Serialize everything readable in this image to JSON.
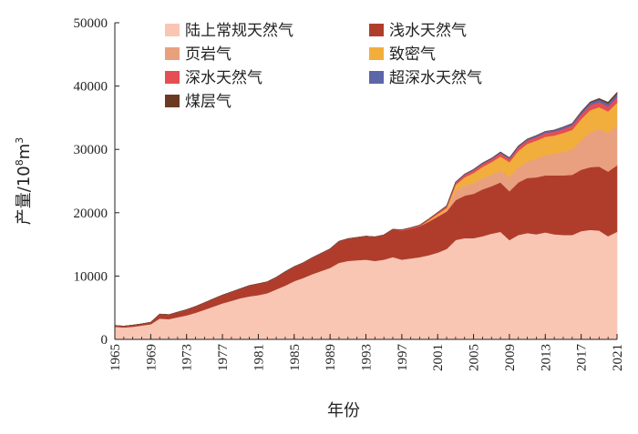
{
  "chart_data": {
    "type": "area",
    "stacked": true,
    "xlabel": "年份",
    "ylabel": "产量/10⁸m³",
    "ylabel_main": "产量/10",
    "ylabel_exp": "8",
    "ylabel_unit": "m",
    "ylabel_unit_exp": "3",
    "ylim": [
      0,
      50000
    ],
    "yticks": [
      0,
      10000,
      20000,
      30000,
      40000,
      50000
    ],
    "xlim": [
      1965,
      2021
    ],
    "xticks": [
      1965,
      1969,
      1973,
      1977,
      1981,
      1985,
      1989,
      1993,
      1997,
      2001,
      2005,
      2009,
      2013,
      2017,
      2021
    ],
    "legend_position": "top",
    "years": [
      1965,
      1966,
      1967,
      1968,
      1969,
      1970,
      1971,
      1972,
      1973,
      1974,
      1975,
      1976,
      1977,
      1978,
      1979,
      1980,
      1981,
      1982,
      1983,
      1984,
      1985,
      1986,
      1987,
      1988,
      1989,
      1990,
      1991,
      1992,
      1993,
      1994,
      1995,
      1996,
      1997,
      1998,
      1999,
      2000,
      2001,
      2002,
      2003,
      2004,
      2005,
      2006,
      2007,
      2008,
      2009,
      2010,
      2011,
      2012,
      2013,
      2014,
      2015,
      2016,
      2017,
      2018,
      2019,
      2020,
      2021
    ],
    "series": [
      {
        "name": "陆上常规天然气",
        "color": "#f9c6b4",
        "values": [
          2000,
          1900,
          2000,
          2200,
          2400,
          3300,
          3200,
          3500,
          3800,
          4200,
          4700,
          5200,
          5700,
          6100,
          6500,
          6800,
          7000,
          7300,
          7900,
          8500,
          9200,
          9700,
          10300,
          10800,
          11300,
          12100,
          12400,
          12500,
          12600,
          12400,
          12600,
          13000,
          12600,
          12800,
          13000,
          13300,
          13700,
          14300,
          15700,
          16000,
          16000,
          16300,
          16700,
          17000,
          15700,
          16500,
          16800,
          16600,
          16900,
          16600,
          16500,
          16500,
          17100,
          17300,
          17200,
          16300,
          17000
        ]
      },
      {
        "name": "浅水天然气",
        "color": "#b03d2c",
        "values": [
          200,
          200,
          250,
          250,
          300,
          700,
          700,
          800,
          900,
          1000,
          1100,
          1200,
          1300,
          1400,
          1500,
          1700,
          1800,
          1800,
          1900,
          2200,
          2300,
          2400,
          2600,
          2800,
          3000,
          3400,
          3500,
          3600,
          3700,
          3800,
          3900,
          4400,
          4600,
          4700,
          4900,
          5300,
          5700,
          5900,
          6300,
          6700,
          7000,
          7400,
          7500,
          7800,
          7700,
          8300,
          8700,
          9000,
          9000,
          9300,
          9400,
          9500,
          9700,
          9900,
          10100,
          10200,
          10500
        ]
      },
      {
        "name": "页岩气",
        "color": "#e9a07e",
        "values": [
          0,
          0,
          0,
          0,
          0,
          0,
          0,
          0,
          0,
          0,
          0,
          0,
          0,
          0,
          0,
          0,
          0,
          0,
          0,
          0,
          0,
          0,
          0,
          0,
          0,
          0,
          0,
          0,
          0,
          0,
          0,
          0,
          0,
          0,
          0,
          0,
          100,
          150,
          1500,
          1600,
          1700,
          1750,
          1800,
          1900,
          2200,
          2400,
          2600,
          2900,
          3200,
          3400,
          3700,
          4000,
          4700,
          5500,
          6000,
          6100,
          6300
        ]
      },
      {
        "name": "致密气",
        "color": "#f2ae3c",
        "values": [
          0,
          0,
          0,
          0,
          0,
          0,
          0,
          0,
          0,
          0,
          0,
          0,
          0,
          0,
          0,
          0,
          0,
          0,
          0,
          0,
          0,
          0,
          0,
          0,
          0,
          0,
          0,
          0,
          0,
          0,
          0,
          0,
          0,
          0,
          0,
          200,
          300,
          400,
          900,
          1300,
          1600,
          1800,
          2000,
          2200,
          2400,
          2600,
          2800,
          2900,
          2900,
          2900,
          3000,
          3100,
          3300,
          3500,
          3400,
          3400,
          3600
        ]
      },
      {
        "name": "深水天然气",
        "color": "#e54e52",
        "values": [
          0,
          0,
          0,
          0,
          0,
          0,
          0,
          0,
          0,
          0,
          0,
          0,
          0,
          0,
          0,
          0,
          0,
          0,
          0,
          0,
          0,
          0,
          0,
          0,
          0,
          0,
          0,
          0,
          0,
          0,
          0,
          0,
          100,
          150,
          150,
          200,
          250,
          300,
          350,
          400,
          400,
          450,
          450,
          500,
          500,
          550,
          550,
          550,
          600,
          600,
          650,
          700,
          750,
          800,
          800,
          800,
          850
        ]
      },
      {
        "name": "超深水天然气",
        "color": "#5c66a8",
        "values": [
          0,
          0,
          0,
          0,
          0,
          0,
          0,
          0,
          0,
          0,
          0,
          0,
          0,
          0,
          0,
          0,
          0,
          0,
          0,
          0,
          0,
          0,
          0,
          0,
          0,
          0,
          0,
          0,
          0,
          0,
          0,
          0,
          0,
          0,
          0,
          0,
          0,
          50,
          100,
          100,
          150,
          150,
          150,
          200,
          200,
          200,
          200,
          250,
          250,
          250,
          300,
          300,
          350,
          400,
          400,
          450,
          500
        ]
      },
      {
        "name": "煤层气",
        "color": "#6b3a22",
        "values": [
          0,
          0,
          0,
          0,
          0,
          0,
          0,
          0,
          0,
          0,
          0,
          0,
          0,
          0,
          0,
          0,
          0,
          0,
          0,
          0,
          0,
          0,
          0,
          0,
          0,
          0,
          0,
          0,
          0,
          0,
          0,
          0,
          0,
          0,
          0,
          0,
          0,
          0,
          0,
          0,
          0,
          0,
          0,
          0,
          0,
          0,
          0,
          0,
          0,
          0,
          0,
          0,
          50,
          100,
          150,
          200,
          250
        ]
      }
    ]
  }
}
